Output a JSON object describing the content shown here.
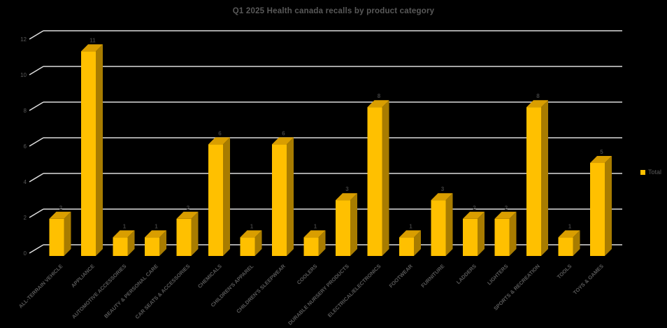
{
  "page": {
    "background": "#000000"
  },
  "chart_data": {
    "type": "bar",
    "projection": "3d",
    "title": "Q1 2025 Health canada recalls by product category",
    "categories": [
      "ALL-TERRAIN VEHICLE",
      "APPLIANCE",
      "AUTOMOTIVE ACCESSORIES",
      "BEAUTY & PERSONAL CARE",
      "CAR SEATS & ACCESSORIES",
      "CHEMICALS",
      "CHILDREN'S APPAREL",
      "CHILDREN'S SLEEPWEAR",
      "COOLERS",
      "DURABLE NURSERY PRODUCTS",
      "ELECTRICAL/ELECTRONICS",
      "FOOTWEAR",
      "FURNITURE",
      "LADDERS",
      "LIGHTERS",
      "SPORTS & RECREATION",
      "TOOLS",
      "TOYS & GAMES"
    ],
    "series": [
      {
        "name": "Total",
        "values": [
          2,
          11,
          1,
          1,
          2,
          6,
          1,
          6,
          1,
          3,
          8,
          1,
          3,
          2,
          2,
          8,
          1,
          5
        ]
      }
    ],
    "xlabel": "",
    "ylabel": "",
    "ylim": [
      0,
      12
    ],
    "yticks": [
      0,
      2,
      4,
      6,
      8,
      10,
      12
    ],
    "grid": true,
    "legend": {
      "position": "right",
      "entries": [
        "Total"
      ]
    },
    "colors": {
      "bar_front": "#FFC000",
      "bar_top": "#D99E00",
      "bar_side": "#A87C00",
      "gridline": "#DCDCDC",
      "axis_text": "#595959",
      "value_label": "#404040",
      "title_text": "#595959",
      "background": "#000000"
    }
  }
}
